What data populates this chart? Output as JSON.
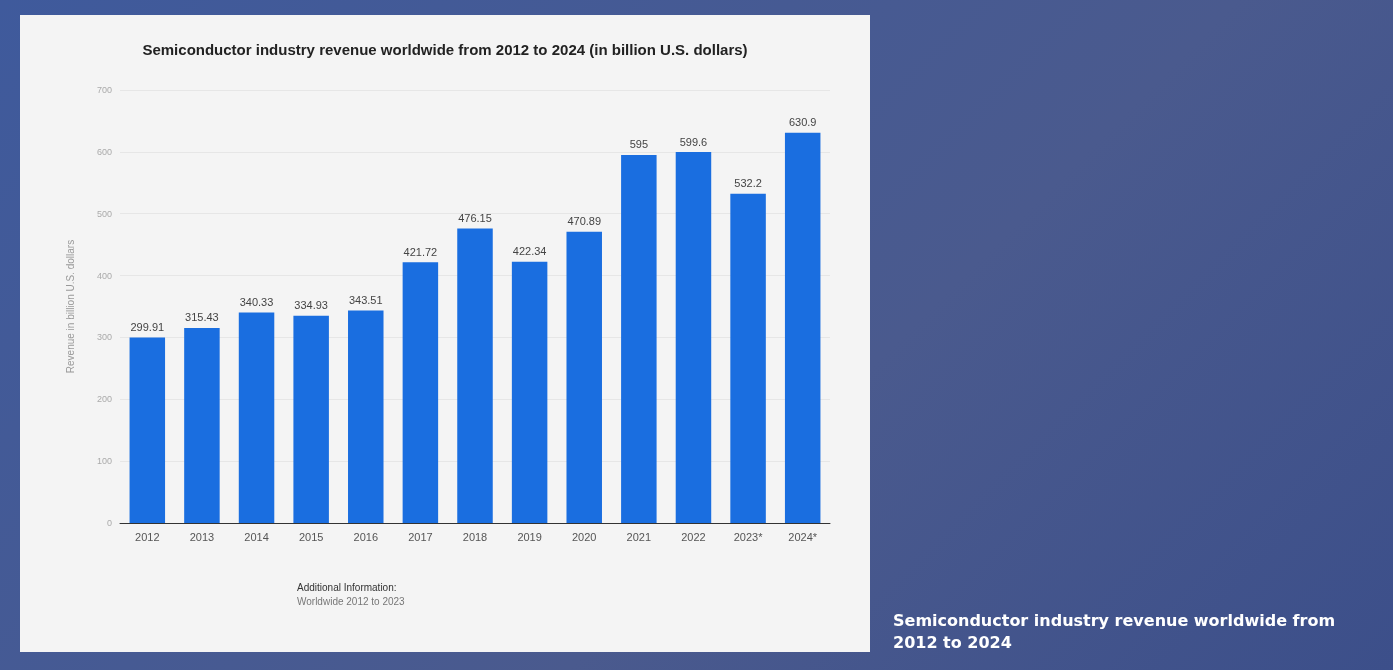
{
  "chart_data": {
    "type": "bar",
    "title": "Semiconductor industry revenue worldwide from 2012 to 2024 (in billion U.S. dollars)",
    "ylabel": "Revenue in billion U.S. dollars",
    "categories": [
      "2012",
      "2013",
      "2014",
      "2015",
      "2016",
      "2017",
      "2018",
      "2019",
      "2020",
      "2021",
      "2022",
      "2023*",
      "2024*"
    ],
    "values": [
      299.91,
      315.43,
      340.33,
      334.93,
      343.51,
      421.72,
      476.15,
      422.34,
      470.89,
      595,
      599.6,
      532.2,
      630.9
    ],
    "color": "#1a6ee0",
    "ylim": [
      0,
      700
    ],
    "yticks": [
      0,
      100,
      200,
      300,
      400,
      500,
      600,
      700
    ],
    "grid": "y",
    "data_labels": true,
    "annotations": [
      "Additional Information:",
      "Worldwide 2012 to 2023",
      "Semiconductor industry revenue worldwide from 2012 to 2024"
    ]
  }
}
